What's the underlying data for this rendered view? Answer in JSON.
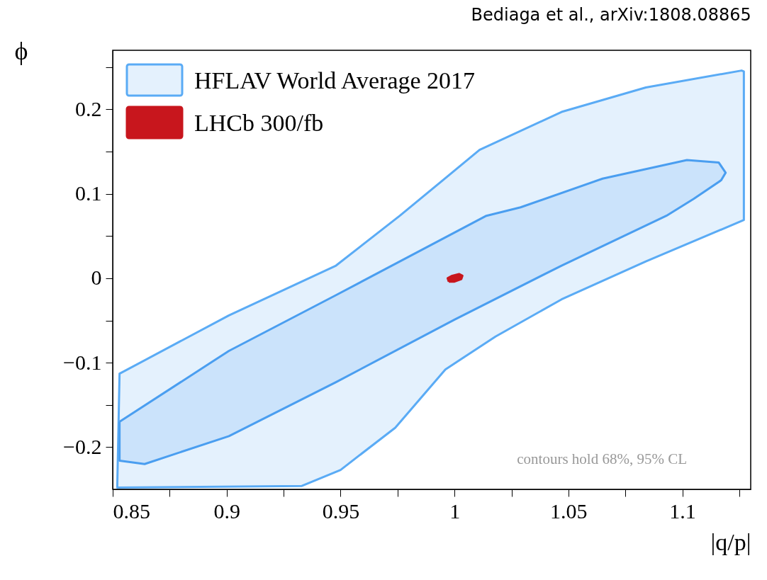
{
  "chart_data": {
    "type": "area",
    "xlabel": "|q/p|",
    "ylabel": "ϕ",
    "annotations": [
      "Bediaga et al., arXiv:1808.08865",
      "contours hold 68%, 95% CL"
    ],
    "xlim": [
      0.85,
      1.13
    ],
    "ylim": [
      -0.25,
      0.27
    ],
    "xticks": [
      0.85,
      {
        "value": 0.875,
        "label": null
      },
      0.9,
      {
        "value": 0.925,
        "label": null
      },
      0.95,
      {
        "value": 0.975,
        "label": null
      },
      1,
      {
        "value": 1.025,
        "label": null
      },
      1.05,
      {
        "value": 1.075,
        "label": null
      },
      1.1,
      {
        "value": 1.125,
        "label": null
      }
    ],
    "yticks": [
      {
        "value": -0.2,
        "label": "−0.2"
      },
      {
        "value": -0.15,
        "label": null
      },
      {
        "value": -0.1,
        "label": "−0.1"
      },
      {
        "value": -0.05,
        "label": null
      },
      0,
      {
        "value": 0.05,
        "label": null
      },
      0.1,
      {
        "value": 0.15,
        "label": null
      },
      0.2,
      {
        "value": 0.25,
        "label": null
      }
    ],
    "grid": false,
    "legend": "top left",
    "series": [
      {
        "name": "HFLAV World Average 2017",
        "color": "#5aabf5",
        "x": [
          0.852,
          0.853,
          0.901,
          0.948,
          0.976,
          1.011,
          1.047,
          1.084,
          1.126,
          1.127,
          1.127,
          1.084,
          1.047,
          1.018,
          0.996,
          0.974,
          0.95,
          0.933,
          0.852
        ],
        "values": [
          -0.246,
          -0.113,
          -0.044,
          0.015,
          0.074,
          0.152,
          0.197,
          0.226,
          0.246,
          0.245,
          0.069,
          0.02,
          -0.025,
          -0.069,
          -0.108,
          -0.177,
          -0.227,
          -0.246,
          -0.248
        ]
      },
      {
        "color": "#4a9ef0",
        "x": [
          0.853,
          0.901,
          0.948,
          1.014,
          1.029,
          1.065,
          1.102,
          1.116,
          1.119,
          1.117,
          1.105,
          1.093,
          1.047,
          1.0,
          0.948,
          0.901,
          0.864,
          0.853
        ],
        "values": [
          -0.17,
          -0.086,
          -0.02,
          0.074,
          0.084,
          0.118,
          0.14,
          0.137,
          0.125,
          0.116,
          0.094,
          0.074,
          0.015,
          -0.049,
          -0.123,
          -0.187,
          -0.22,
          -0.216
        ]
      },
      {
        "name": "LHCb 300/fb",
        "color": "#c8161d",
        "x": [
          0.9975,
          0.997,
          0.999,
          1.002,
          1.0035,
          1.003,
          1.0
        ],
        "values": [
          -0.004,
          0.0,
          0.003,
          0.005,
          0.003,
          -0.001,
          -0.004
        ]
      }
    ]
  }
}
